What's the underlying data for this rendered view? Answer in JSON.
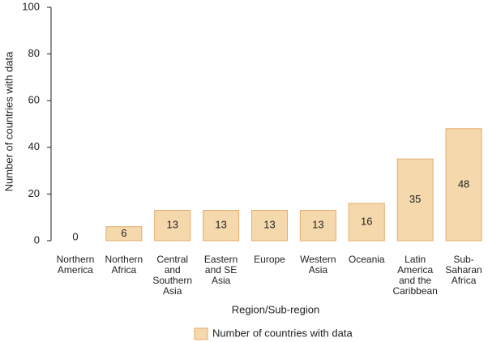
{
  "chart_data": {
    "type": "bar",
    "categories": [
      "Northern America",
      "Northern Africa",
      "Central and Southern Asia",
      "Eastern and SE Asia",
      "Europe",
      "Western Asia",
      "Oceania",
      "Latin America and the Caribbean",
      "Sub-Saharan Africa"
    ],
    "values": [
      0,
      6,
      13,
      13,
      13,
      13,
      16,
      35,
      48
    ],
    "color": "#f6d8ad",
    "edge_color": "#e3ac6a",
    "ylim": [
      0,
      100
    ],
    "yticks": [
      0,
      20,
      40,
      60,
      80,
      100
    ],
    "y_label": "Number of countries with data",
    "x_label": "Region/Sub-region",
    "legend": "Number of countries with data",
    "legend_position": "bottom",
    "grid": false
  }
}
